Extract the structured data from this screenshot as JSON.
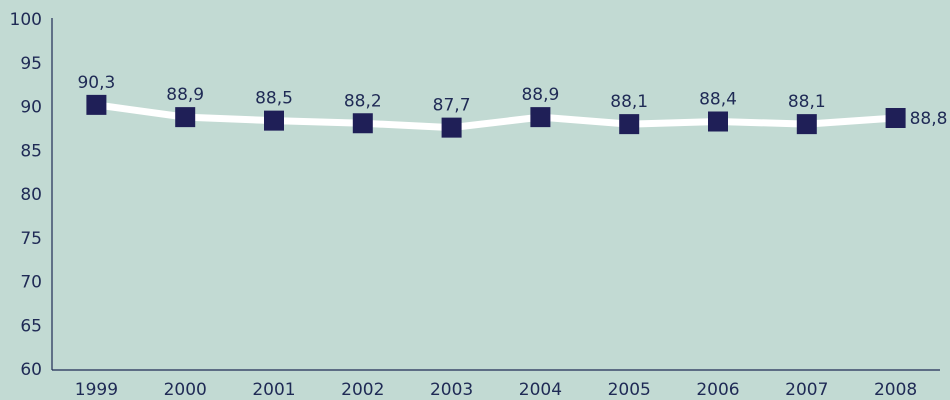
{
  "chart_data": {
    "type": "line",
    "categories": [
      "1999",
      "2000",
      "2001",
      "2002",
      "2003",
      "2004",
      "2005",
      "2006",
      "2007",
      "2008"
    ],
    "series": [
      {
        "color": "#ffffff",
        "marker_color": "#1f1f57",
        "values": [
          90.3,
          88.9,
          88.5,
          88.2,
          87.7,
          88.9,
          88.1,
          88.4,
          88.1,
          88.8
        ],
        "value_labels": [
          "90,3",
          "88,9",
          "88,5",
          "88,2",
          "87,7",
          "88,9",
          "88,1",
          "88,4",
          "88,1",
          "88,8"
        ]
      }
    ],
    "ylim": [
      60,
      100
    ],
    "yticks": [
      60,
      65,
      70,
      75,
      80,
      85,
      90,
      95,
      100
    ],
    "grid": false
  }
}
